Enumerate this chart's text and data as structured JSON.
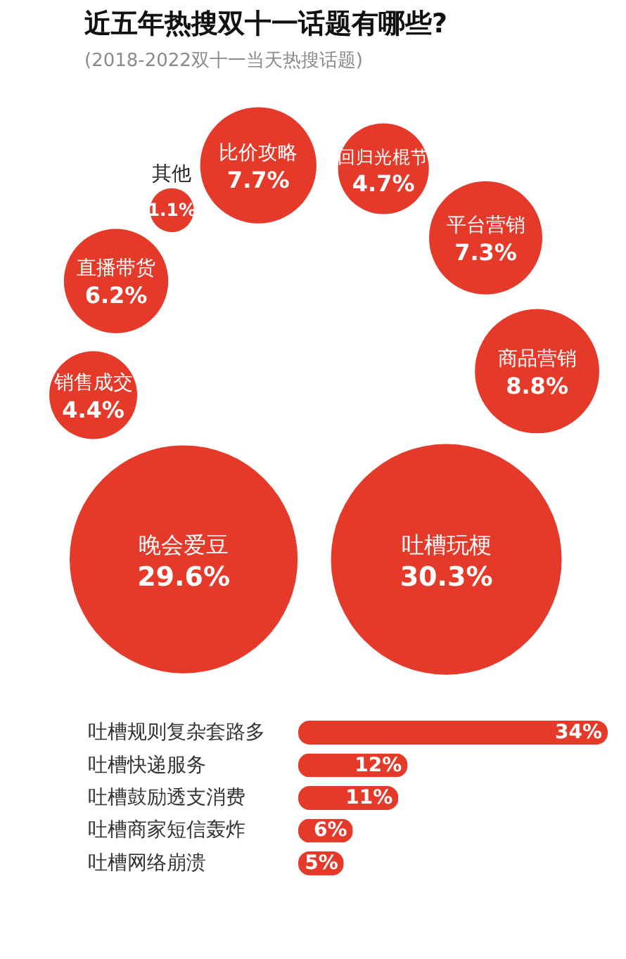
{
  "chart_data": [
    {
      "type": "other",
      "title": "近五年热搜双十一话题有哪些?",
      "subtitle": "(2018-2022双十一当天热搜话题)",
      "categories": [
        "销售成交",
        "直播带货",
        "其他",
        "比价攻略",
        "回归光棍节",
        "平台营销",
        "商品营销",
        "吐槽玩梗",
        "晚会爱豆"
      ],
      "series": [
        {
          "color": "#e5392a",
          "values": [
            4.4,
            6.2,
            1.1,
            7.7,
            4.7,
            7.3,
            8.8,
            30.3,
            29.6
          ],
          "value_labels": [
            "4.4%",
            "6.2%",
            "1.1%",
            "7.7%",
            "4.7%",
            "7.3%",
            "8.8%",
            "30.3%",
            "29.6%"
          ]
        }
      ]
    },
    {
      "type": "bar",
      "orientation": "horizontal",
      "categories": [
        "吐槽规则复杂套路多",
        "吐槽快递服务",
        "吐槽鼓励透支消费",
        "吐槽商家短信轰炸",
        "吐槽网络崩溃"
      ],
      "series": [
        {
          "color": "#e5392a",
          "values": [
            34,
            12,
            11,
            6,
            5
          ],
          "value_labels": [
            "34%",
            "12%",
            "11%",
            "6%",
            "5%"
          ]
        }
      ]
    }
  ]
}
